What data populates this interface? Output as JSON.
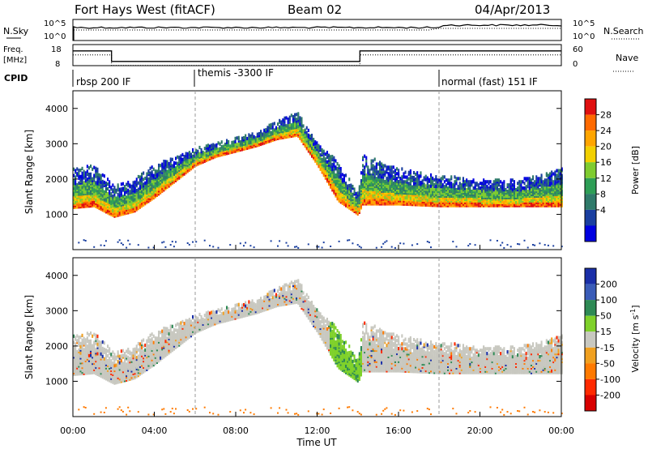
{
  "header": {
    "station": "Fort Hays West (fitACF)",
    "beam": "Beam 02",
    "date": "04/Apr/2013"
  },
  "left_labels": {
    "nsky": "N.Sky",
    "freq_line1": "Freq.",
    "freq_line2": "[MHz]",
    "cpid": "CPID"
  },
  "right_labels": {
    "nsearch": "N.Search",
    "nave": "Nave"
  },
  "noise_axis": {
    "top": "10^5",
    "bottom": "10^0"
  },
  "freq_axis": {
    "top": "18",
    "bottom": "8"
  },
  "nave_axis": {
    "top": "60",
    "bottom": "0"
  },
  "cpid_segments": [
    {
      "label": "rbsp 200 IF",
      "start_h": 0
    },
    {
      "label": "themis -3300 IF",
      "start_h": 6
    },
    {
      "label": "normal (fast) 151 IF",
      "start_h": 18
    }
  ],
  "x_ticks": [
    "00:00",
    "04:00",
    "08:00",
    "12:00",
    "16:00",
    "20:00",
    "00:00"
  ],
  "x_label": "Time UT",
  "y_label": "Slant Range [km]",
  "y_ticks": [
    "1000",
    "2000",
    "3000",
    "4000"
  ],
  "power_colorbar": {
    "label": "Power [dB]",
    "ticks": [
      "28",
      "24",
      "20",
      "16",
      "12",
      "8",
      "4"
    ],
    "colors": [
      "#e01010",
      "#ff6a00",
      "#ffa500",
      "#f2d000",
      "#7fcc30",
      "#2e9e56",
      "#2f7a6a",
      "#1a3fa0",
      "#0000e0"
    ]
  },
  "velocity_colorbar": {
    "label": "Velocity [m s",
    "label_sup": "-1",
    "label_end": "]",
    "ticks": [
      "200",
      "100",
      "50",
      "15",
      "-15",
      "-50",
      "-100",
      "-200"
    ],
    "colors": [
      "#1a2fa8",
      "#3a5cb8",
      "#2e8a55",
      "#7fd12a",
      "#c8c8c0",
      "#f0a020",
      "#ff7a00",
      "#ff2a00",
      "#d80000"
    ]
  },
  "chart_data": {
    "type": "heatmap",
    "x_range_h": [
      0,
      24
    ],
    "y_range_km": [
      0,
      4500
    ],
    "frequency_MHz": [
      {
        "from_h": 0,
        "to_h": 1.9,
        "value": 15
      },
      {
        "from_h": 1.9,
        "to_h": 14.1,
        "value": 10
      },
      {
        "from_h": 14.1,
        "to_h": 24,
        "value": 15
      }
    ],
    "scatter_band_km": [
      {
        "t": 0,
        "low": 1200,
        "high": 2300
      },
      {
        "t": 1,
        "low": 1250,
        "high": 2400
      },
      {
        "t": 2,
        "low": 950,
        "high": 1800
      },
      {
        "t": 3,
        "low": 1100,
        "high": 2000
      },
      {
        "t": 4,
        "low": 1500,
        "high": 2400
      },
      {
        "t": 5,
        "low": 1950,
        "high": 2650
      },
      {
        "t": 6,
        "low": 2400,
        "high": 2900
      },
      {
        "t": 7,
        "low": 2650,
        "high": 3050
      },
      {
        "t": 8,
        "low": 2800,
        "high": 3200
      },
      {
        "t": 9,
        "low": 2950,
        "high": 3350
      },
      {
        "t": 10,
        "low": 3150,
        "high": 3650
      },
      {
        "t": 11,
        "low": 3250,
        "high": 3900
      },
      {
        "t": 12,
        "low": 2400,
        "high": 3000
      },
      {
        "t": 13,
        "low": 1400,
        "high": 2500
      },
      {
        "t": 14,
        "low": 1000,
        "high": 1600
      },
      {
        "t": 14.2,
        "low": 1300,
        "high": 2700
      },
      {
        "t": 16,
        "low": 1300,
        "high": 2300
      },
      {
        "t": 18,
        "low": 1250,
        "high": 2100
      },
      {
        "t": 20,
        "low": 1250,
        "high": 2000
      },
      {
        "t": 22,
        "low": 1250,
        "high": 2000
      },
      {
        "t": 24,
        "low": 1250,
        "high": 2300
      }
    ]
  }
}
